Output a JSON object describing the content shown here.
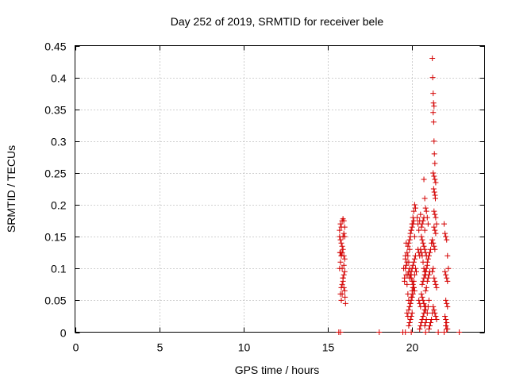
{
  "chart_data": {
    "type": "scatter",
    "title": "Day 252 of 2019, SRMTID for receiver bele",
    "xlabel": "GPS time / hours",
    "ylabel": "SRMTID / TECUs",
    "xlim": [
      0,
      24.3
    ],
    "ylim": [
      0,
      0.45
    ],
    "xticks": [
      "0",
      "5",
      "10",
      "15",
      "20"
    ],
    "xtick_values": [
      0,
      5,
      10,
      15,
      20
    ],
    "yticks": [
      "0",
      "0.05",
      "0.1",
      "0.15",
      "0.2",
      "0.25",
      "0.3",
      "0.35",
      "0.4",
      "0.45"
    ],
    "ytick_values": [
      0,
      0.05,
      0.1,
      0.15,
      0.2,
      0.25,
      0.3,
      0.35,
      0.4,
      0.45
    ],
    "grid": true,
    "marker": "+",
    "color": "#d40000",
    "series": [
      {
        "name": "SRMTID",
        "x": [
          15.65,
          15.75,
          15.7,
          15.72,
          15.75,
          15.8,
          15.85,
          15.9,
          15.95,
          16.0,
          16.02,
          16.05,
          15.75,
          15.8,
          15.85,
          15.9,
          15.95,
          16.0,
          15.7,
          15.75,
          15.8,
          15.85,
          15.9,
          15.95,
          16.0,
          15.75,
          15.8,
          15.85,
          15.9,
          15.95,
          16.0,
          15.7,
          15.75,
          15.8,
          15.85,
          15.9,
          15.95,
          16.0,
          15.8,
          15.85,
          15.9,
          15.95,
          18.05,
          19.5,
          19.55,
          19.6,
          19.65,
          19.7,
          19.75,
          19.8,
          19.85,
          19.9,
          19.95,
          20.0,
          20.05,
          20.1,
          20.15,
          20.2,
          19.55,
          19.6,
          19.65,
          19.7,
          19.75,
          19.8,
          19.85,
          19.9,
          19.95,
          20.0,
          20.05,
          20.1,
          20.15,
          20.2,
          20.25,
          19.6,
          19.65,
          19.7,
          19.75,
          19.8,
          19.85,
          19.9,
          19.95,
          20.0,
          20.05,
          20.1,
          20.15,
          20.2,
          19.7,
          19.75,
          19.8,
          19.85,
          19.9,
          19.95,
          20.0,
          20.05,
          20.1,
          19.75,
          19.8,
          19.85,
          19.9,
          19.95,
          20.0,
          20.05,
          20.1,
          20.15,
          19.8,
          19.85,
          19.9,
          19.95,
          20.0,
          19.85,
          19.9,
          19.95,
          20.0,
          20.05,
          20.1,
          20.15,
          20.3,
          20.35,
          20.4,
          20.45,
          20.5,
          20.55,
          20.6,
          20.65,
          20.7,
          20.75,
          20.35,
          20.4,
          20.45,
          20.5,
          20.55,
          20.6,
          20.65,
          20.7,
          20.75,
          20.8,
          20.4,
          20.45,
          20.5,
          20.55,
          20.6,
          20.65,
          20.7,
          20.75,
          20.8,
          20.45,
          20.5,
          20.55,
          20.6,
          20.65,
          20.7,
          20.75,
          20.8,
          20.55,
          20.6,
          20.65,
          20.7,
          20.75,
          20.8,
          20.85,
          20.6,
          20.65,
          20.7,
          20.75,
          20.8,
          20.85,
          20.9,
          20.7,
          20.75,
          20.8,
          20.85,
          20.9,
          20.95,
          20.75,
          20.8,
          20.85,
          20.9,
          20.95,
          21.0,
          20.8,
          20.85,
          20.9,
          20.95,
          21.0,
          21.05,
          20.9,
          20.95,
          21.0,
          21.05,
          21.1,
          21.15,
          21.0,
          21.05,
          21.1,
          21.15,
          21.2,
          21.2,
          21.22,
          21.25,
          21.27,
          21.3,
          21.25,
          21.28,
          21.3,
          21.32,
          21.35,
          21.25,
          21.3,
          21.35,
          21.4,
          21.28,
          21.32,
          21.36,
          21.38,
          21.3,
          21.35,
          21.4,
          21.45,
          21.3,
          21.35,
          21.4,
          21.2,
          21.25,
          21.3,
          21.35,
          21.4,
          21.45,
          21.25,
          21.3,
          21.35,
          21.4,
          21.45,
          21.2,
          21.25,
          21.3,
          21.35,
          21.9,
          21.95,
          22.0,
          22.05,
          22.1,
          22.15,
          21.95,
          22.0,
          22.05,
          22.1,
          22.0,
          22.05,
          22.1,
          21.95,
          22.0,
          22.05,
          22.0,
          22.05,
          22.1,
          22.8,
          19.45,
          19.6,
          19.95,
          20.8,
          21.55,
          21.9
        ],
        "y": [
          0,
          0,
          0.16,
          0.125,
          0.125,
          0.12,
          0.1,
          0.085,
          0.07,
          0.065,
          0.055,
          0.045,
          0.17,
          0.165,
          0.175,
          0.178,
          0.175,
          0.165,
          0.1,
          0.11,
          0.12,
          0.125,
          0.13,
          0.12,
          0.115,
          0.06,
          0.07,
          0.075,
          0.08,
          0.09,
          0.095,
          0.15,
          0.145,
          0.14,
          0.135,
          0.15,
          0.155,
          0.15,
          0.05,
          0.06,
          0.085,
          0.105,
          0,
          0.1,
          0.085,
          0.12,
          0.14,
          0.11,
          0.09,
          0.095,
          0.13,
          0.15,
          0.16,
          0.17,
          0.18,
          0.19,
          0.2,
          0.195,
          0.08,
          0.1,
          0.09,
          0.075,
          0.06,
          0.05,
          0.04,
          0.045,
          0.055,
          0.065,
          0.07,
          0.08,
          0.09,
          0.1,
          0.095,
          0.115,
          0.105,
          0.125,
          0.135,
          0.14,
          0.145,
          0.155,
          0.16,
          0.165,
          0.17,
          0.175,
          0.15,
          0.12,
          0.03,
          0.025,
          0.035,
          0.04,
          0.045,
          0.05,
          0.055,
          0.06,
          0.07,
          0.12,
          0.11,
          0.1,
          0.09,
          0.085,
          0.08,
          0.075,
          0.07,
          0.065,
          0.01,
          0.015,
          0.02,
          0.025,
          0.03,
          0.085,
          0.09,
          0.095,
          0.1,
          0.105,
          0.11,
          0.115,
          0.18,
          0.17,
          0.16,
          0.175,
          0.185,
          0.165,
          0.17,
          0.175,
          0.18,
          0.16,
          0.13,
          0.125,
          0.12,
          0.13,
          0.125,
          0.12,
          0.11,
          0.1,
          0.095,
          0.09,
          0.05,
          0.045,
          0.04,
          0.06,
          0.055,
          0.05,
          0.045,
          0.04,
          0.035,
          0.005,
          0.01,
          0.015,
          0.02,
          0.025,
          0.03,
          0.035,
          0.04,
          0.15,
          0.145,
          0.14,
          0.135,
          0.13,
          0.125,
          0.12,
          0.075,
          0.08,
          0.085,
          0.09,
          0.095,
          0.1,
          0.105,
          0.24,
          0.21,
          0.195,
          0.19,
          0.18,
          0.17,
          0.01,
          0.015,
          0.02,
          0.03,
          0.04,
          0.05,
          0.065,
          0.07,
          0.08,
          0.085,
          0.09,
          0.095,
          0.11,
          0.115,
          0.12,
          0.125,
          0.13,
          0.14,
          0.005,
          0.01,
          0.015,
          0.02,
          0.03,
          0.43,
          0.4,
          0.375,
          0.36,
          0.355,
          0.345,
          0.33,
          0.3,
          0.28,
          0.265,
          0.25,
          0.245,
          0.24,
          0.235,
          0.225,
          0.22,
          0.215,
          0.21,
          0.19,
          0.185,
          0.18,
          0.17,
          0.165,
          0.16,
          0.155,
          0.095,
          0.1,
          0.085,
          0.08,
          0.075,
          0.07,
          0.04,
          0.035,
          0.03,
          0.025,
          0.02,
          0.145,
          0.14,
          0.135,
          0.13,
          0.17,
          0.155,
          0.15,
          0.145,
          0.12,
          0.1,
          0.095,
          0.09,
          0.085,
          0.08,
          0.05,
          0.045,
          0.04,
          0.025,
          0.02,
          0.015,
          0.01,
          0.005,
          0.005,
          0,
          0,
          0,
          0,
          0,
          0,
          0
        ]
      }
    ]
  }
}
